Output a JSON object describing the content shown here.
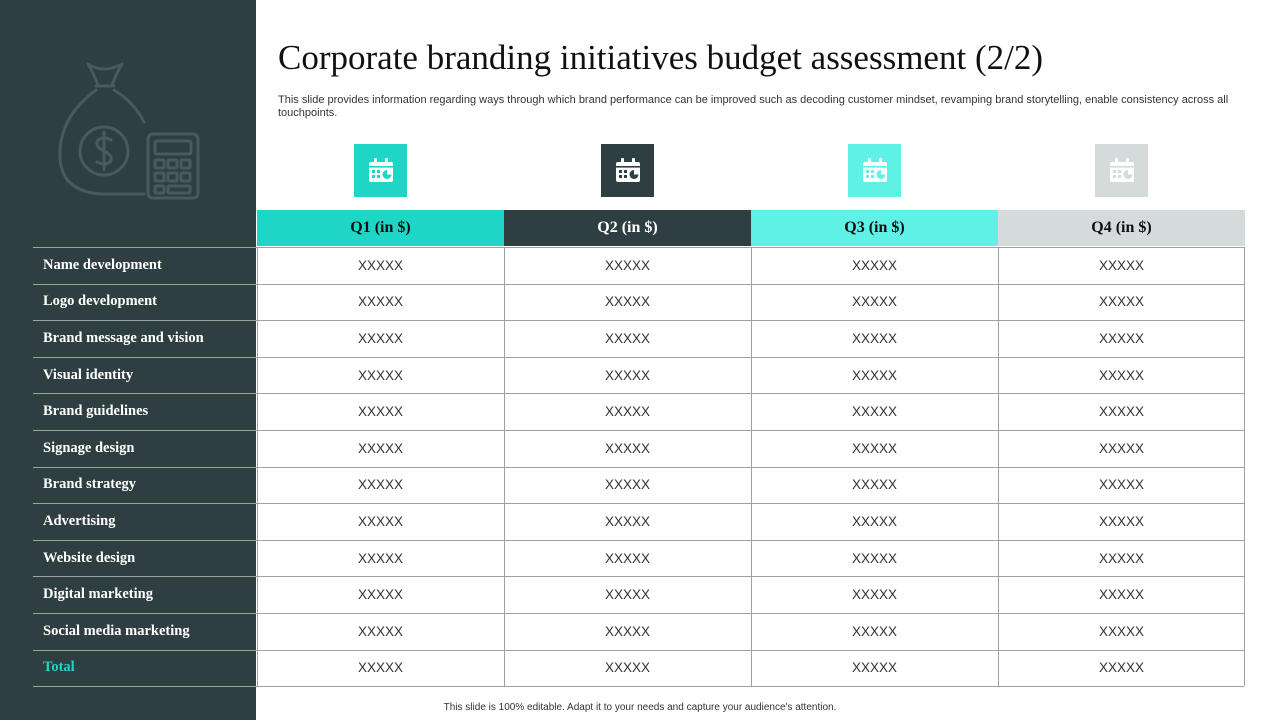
{
  "header": {
    "title": "Corporate branding initiatives budget assessment (2/2)",
    "subtitle": "This slide provides information regarding ways through which brand performance can be improved such as decoding customer mindset, revamping brand storytelling, enable consistency across all touchpoints."
  },
  "illustration": {
    "icon": "money-bag-calculator-icon"
  },
  "quarters": [
    {
      "label": "Q1 (in $)",
      "icon": "calendar-chart-icon",
      "color": "#1fd5c6",
      "text_color": "#111111"
    },
    {
      "label": "Q2 (in $)",
      "icon": "calendar-chart-icon",
      "color": "#2f3e40",
      "text_color": "#ffffff"
    },
    {
      "label": "Q3 (in $)",
      "icon": "calendar-chart-icon",
      "color": "#5ff0e6",
      "text_color": "#111111"
    },
    {
      "label": "Q4 (in $)",
      "icon": "calendar-chart-icon",
      "color": "#d5dadb",
      "text_color": "#111111"
    }
  ],
  "rows": [
    {
      "label": "Name development",
      "values": [
        "XXXXX",
        "XXXXX",
        "XXXXX",
        "XXXXX"
      ]
    },
    {
      "label": "Logo development",
      "values": [
        "XXXXX",
        "XXXXX",
        "XXXXX",
        "XXXXX"
      ]
    },
    {
      "label": "Brand message and vision",
      "values": [
        "XXXXX",
        "XXXXX",
        "XXXXX",
        "XXXXX"
      ]
    },
    {
      "label": "Visual identity",
      "values": [
        "XXXXX",
        "XXXXX",
        "XXXXX",
        "XXXXX"
      ]
    },
    {
      "label": "Brand guidelines",
      "values": [
        "XXXXX",
        "XXXXX",
        "XXXXX",
        "XXXXX"
      ]
    },
    {
      "label": "Signage design",
      "values": [
        "XXXXX",
        "XXXXX",
        "XXXXX",
        "XXXXX"
      ]
    },
    {
      "label": "Brand strategy",
      "values": [
        "XXXXX",
        "XXXXX",
        "XXXXX",
        "XXXXX"
      ]
    },
    {
      "label": "Advertising",
      "values": [
        "XXXXX",
        "XXXXX",
        "XXXXX",
        "XXXXX"
      ]
    },
    {
      "label": "Website design",
      "values": [
        "XXXXX",
        "XXXXX",
        "XXXXX",
        "XXXXX"
      ]
    },
    {
      "label": "Digital marketing",
      "values": [
        "XXXXX",
        "XXXXX",
        "XXXXX",
        "XXXXX"
      ]
    },
    {
      "label": "Social media marketing",
      "values": [
        "XXXXX",
        "XXXXX",
        "XXXXX",
        "XXXXX"
      ]
    },
    {
      "label": "Total",
      "values": [
        "XXXXX",
        "XXXXX",
        "XXXXX",
        "XXXXX"
      ],
      "highlight": true
    }
  ],
  "footer": {
    "text": "This slide is 100% editable. Adapt it to your needs and capture your audience's attention."
  },
  "colors": {
    "panel": "#2f3e40",
    "accent": "#1fd5c6"
  }
}
